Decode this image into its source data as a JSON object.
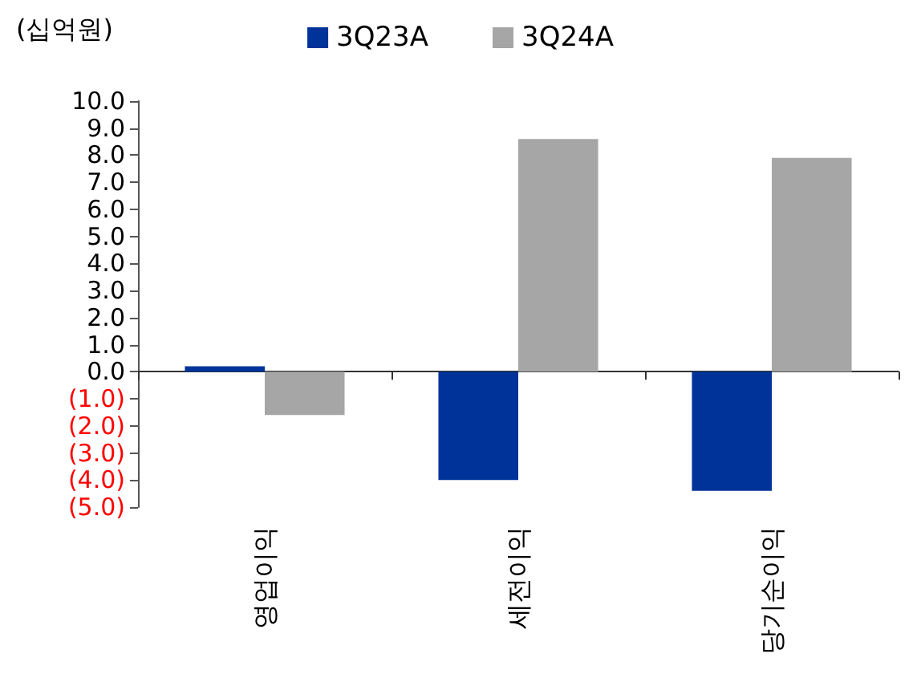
{
  "chart_data": {
    "type": "bar",
    "ylabel": "(십억원)",
    "categories": [
      "영업이익",
      "세전이익",
      "당기순이익"
    ],
    "series": [
      {
        "name": "3Q23A",
        "color": "#003399",
        "values": [
          0.2,
          -4.0,
          -4.4
        ]
      },
      {
        "name": "3Q24A",
        "color": "#a6a6a6",
        "values": [
          -1.6,
          8.6,
          7.9
        ]
      }
    ],
    "ylim": [
      -5,
      10
    ],
    "yticks": [
      {
        "value": -5,
        "label": "(5.0)"
      },
      {
        "value": -4,
        "label": "(4.0)"
      },
      {
        "value": -3,
        "label": "(3.0)"
      },
      {
        "value": -2,
        "label": "(2.0)"
      },
      {
        "value": -1,
        "label": "(1.0)"
      },
      {
        "value": 0,
        "label": "0.0"
      },
      {
        "value": 1,
        "label": "1.0"
      },
      {
        "value": 2,
        "label": "2.0"
      },
      {
        "value": 3,
        "label": "3.0"
      },
      {
        "value": 4,
        "label": "4.0"
      },
      {
        "value": 5,
        "label": "5.0"
      },
      {
        "value": 6,
        "label": "6.0"
      },
      {
        "value": 7,
        "label": "7.0"
      },
      {
        "value": 8,
        "label": "8.0"
      },
      {
        "value": 9,
        "label": "9.0"
      },
      {
        "value": 10,
        "label": "10.0"
      }
    ],
    "legend": "top"
  }
}
